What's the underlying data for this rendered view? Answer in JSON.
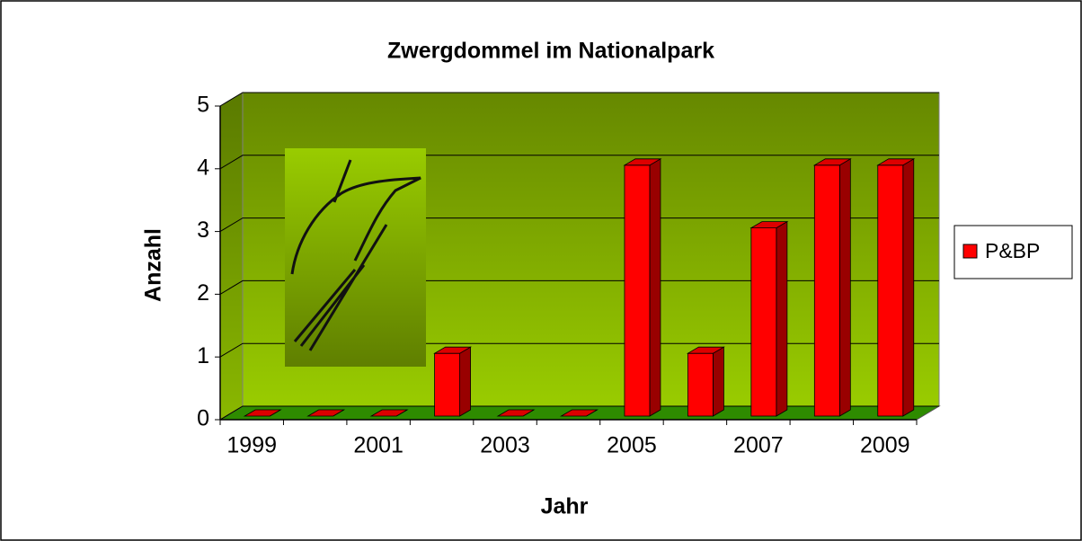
{
  "chart_data": {
    "type": "bar3d",
    "title": "Zwergdommel im Nationalpark",
    "x_label": "Jahr",
    "y_label": "Anzahl",
    "categories": [
      1999,
      null,
      2001,
      null,
      2003,
      null,
      2005,
      null,
      2007,
      null,
      2009
    ],
    "series": [
      {
        "name": "P&BP",
        "color": "#ff0000",
        "values": [
          0,
          0,
          0,
          1,
          0,
          0,
          4,
          1,
          3,
          4,
          4
        ]
      }
    ],
    "ylim": [
      0,
      5
    ],
    "yticks": [
      0,
      1,
      2,
      3,
      4,
      5
    ],
    "grid": true,
    "legend": "right"
  }
}
